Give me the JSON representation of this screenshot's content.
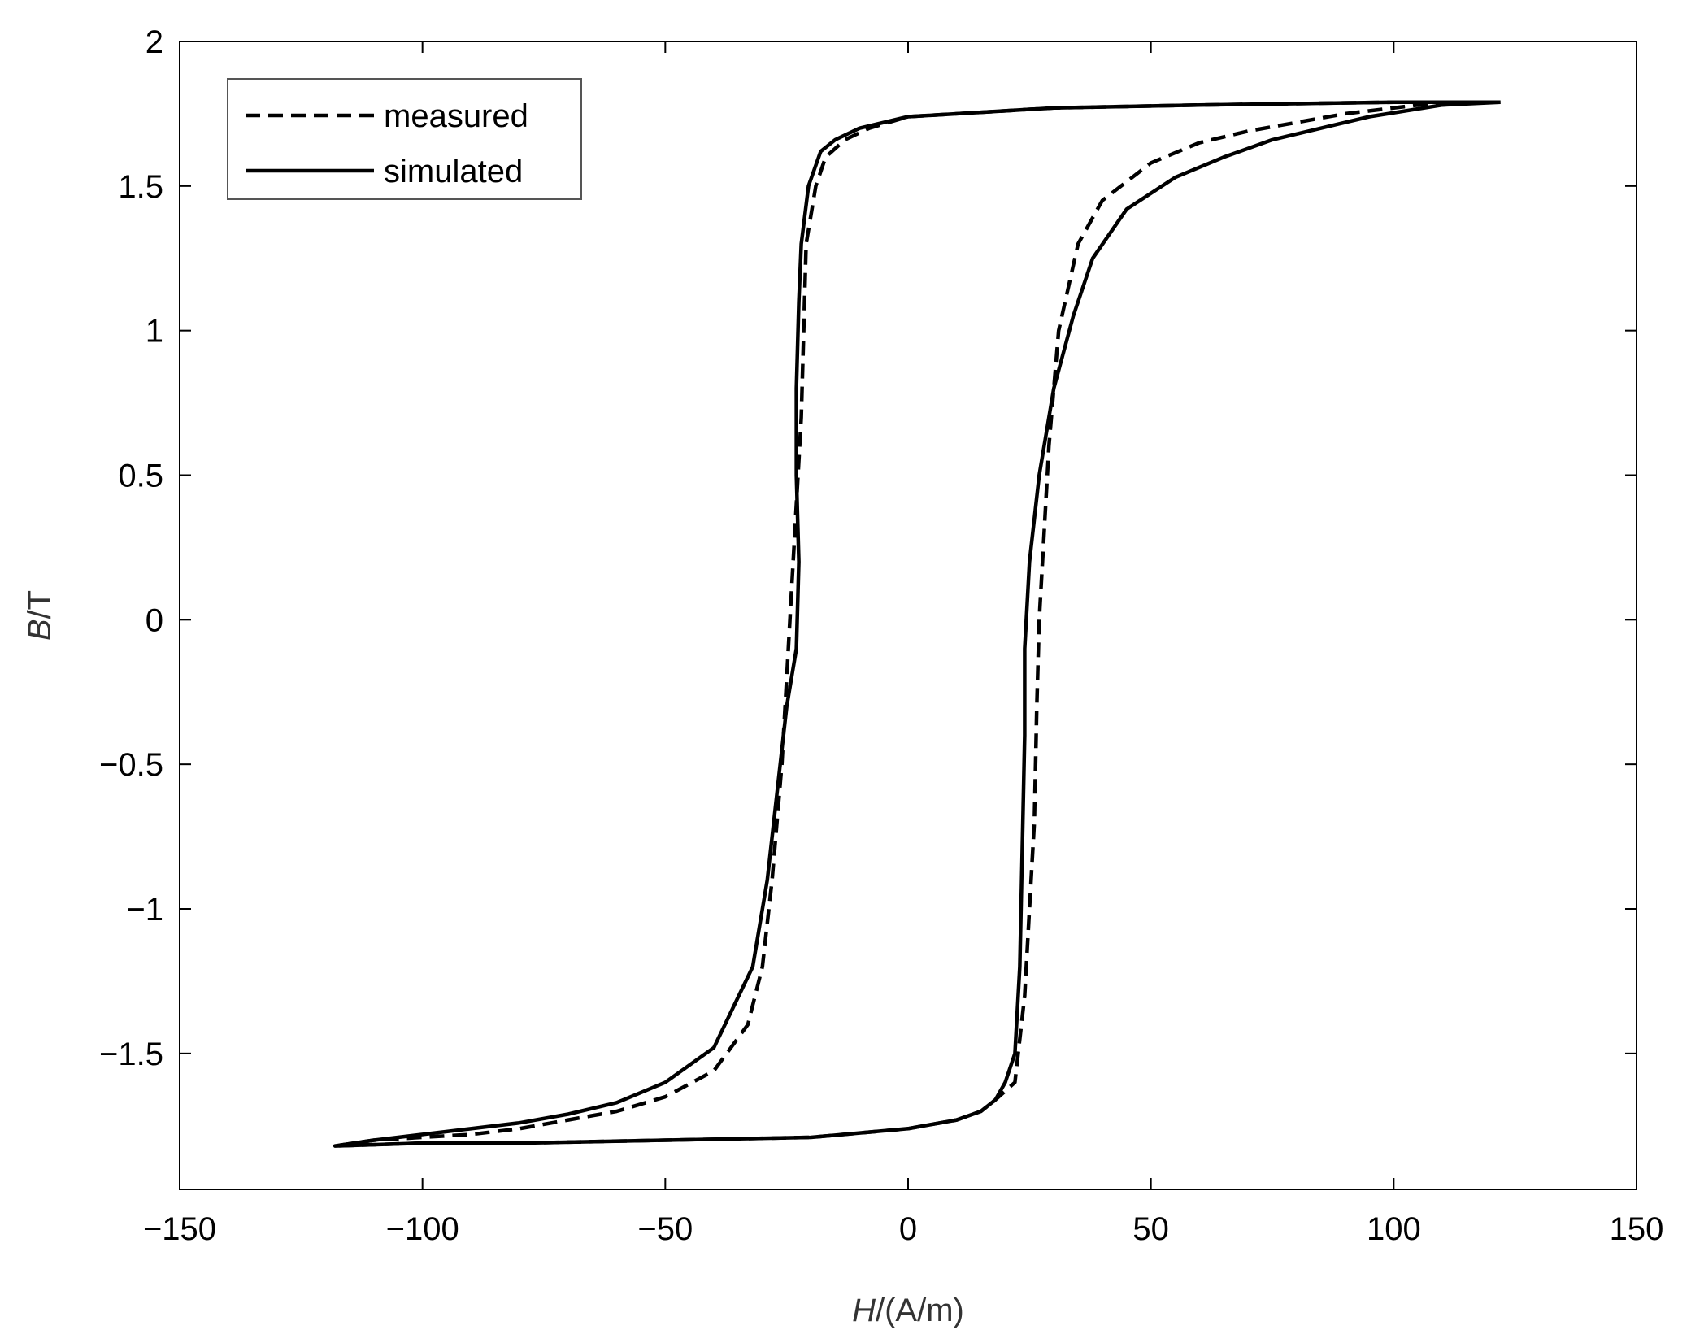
{
  "chart_data": {
    "type": "line",
    "xlabel": {
      "italic": "H",
      "rest": "/(A/m)"
    },
    "ylabel": {
      "italic": "B",
      "rest": "/T"
    },
    "xlim": [
      -150,
      150
    ],
    "ylim": [
      -1.97,
      2.0
    ],
    "xticks": [
      {
        "value": -150,
        "label": "−150"
      },
      {
        "value": -100,
        "label": "−100"
      },
      {
        "value": -50,
        "label": "−50"
      },
      {
        "value": 0,
        "label": "0"
      },
      {
        "value": 50,
        "label": "50"
      },
      {
        "value": 100,
        "label": "100"
      },
      {
        "value": 150,
        "label": "150"
      }
    ],
    "yticks": [
      {
        "value": -1.5,
        "label": "−1.5"
      },
      {
        "value": -1,
        "label": "−1"
      },
      {
        "value": -0.5,
        "label": "−0.5"
      },
      {
        "value": 0,
        "label": "0"
      },
      {
        "value": 0.5,
        "label": "0.5"
      },
      {
        "value": 1,
        "label": "1"
      },
      {
        "value": 1.5,
        "label": "1.5"
      },
      {
        "value": 2,
        "label": "2"
      }
    ],
    "grid": false,
    "legend_position": "top-left",
    "series": [
      {
        "name": "measured",
        "style": "dashed",
        "color": "#000000",
        "points": [
          [
            121,
            1.79
          ],
          [
            110,
            1.79
          ],
          [
            90,
            1.75
          ],
          [
            80,
            1.72
          ],
          [
            70,
            1.69
          ],
          [
            60,
            1.65
          ],
          [
            50,
            1.58
          ],
          [
            40,
            1.45
          ],
          [
            35,
            1.3
          ],
          [
            31,
            1.0
          ],
          [
            29,
            0.6
          ],
          [
            28,
            0.3
          ],
          [
            27,
            0.0
          ],
          [
            26.5,
            -0.3
          ],
          [
            26,
            -0.7
          ],
          [
            25,
            -1.0
          ],
          [
            24,
            -1.3
          ],
          [
            22,
            -1.6
          ],
          [
            18,
            -1.66
          ],
          [
            15,
            -1.7
          ],
          [
            10,
            -1.73
          ],
          [
            0,
            -1.76
          ],
          [
            -20,
            -1.79
          ],
          [
            -50,
            -1.8
          ],
          [
            -80,
            -1.81
          ],
          [
            -100,
            -1.81
          ],
          [
            -118,
            -1.82
          ],
          [
            -110,
            -1.8
          ],
          [
            -90,
            -1.78
          ],
          [
            -80,
            -1.76
          ],
          [
            -70,
            -1.73
          ],
          [
            -60,
            -1.7
          ],
          [
            -50,
            -1.65
          ],
          [
            -40,
            -1.56
          ],
          [
            -33,
            -1.4
          ],
          [
            -30,
            -1.2
          ],
          [
            -28,
            -0.9
          ],
          [
            -26,
            -0.5
          ],
          [
            -25,
            -0.2
          ],
          [
            -24,
            0.1
          ],
          [
            -23,
            0.4
          ],
          [
            -22,
            0.7
          ],
          [
            -21.5,
            1.0
          ],
          [
            -21,
            1.3
          ],
          [
            -19,
            1.5
          ],
          [
            -17,
            1.6
          ],
          [
            -13,
            1.66
          ],
          [
            -8,
            1.7
          ],
          [
            0,
            1.74
          ],
          [
            30,
            1.77
          ],
          [
            60,
            1.78
          ],
          [
            100,
            1.79
          ],
          [
            121,
            1.79
          ]
        ]
      },
      {
        "name": "simulated",
        "style": "solid",
        "color": "#000000",
        "points": [
          [
            122,
            1.79
          ],
          [
            110,
            1.78
          ],
          [
            95,
            1.74
          ],
          [
            85,
            1.7
          ],
          [
            75,
            1.66
          ],
          [
            65,
            1.6
          ],
          [
            55,
            1.53
          ],
          [
            45,
            1.42
          ],
          [
            38,
            1.25
          ],
          [
            34,
            1.05
          ],
          [
            30,
            0.8
          ],
          [
            27,
            0.5
          ],
          [
            25,
            0.2
          ],
          [
            24,
            -0.1
          ],
          [
            24,
            -0.4
          ],
          [
            23.5,
            -0.8
          ],
          [
            23,
            -1.2
          ],
          [
            22,
            -1.5
          ],
          [
            20,
            -1.6
          ],
          [
            18,
            -1.66
          ],
          [
            15,
            -1.7
          ],
          [
            10,
            -1.73
          ],
          [
            0,
            -1.76
          ],
          [
            -20,
            -1.79
          ],
          [
            -50,
            -1.8
          ],
          [
            -80,
            -1.81
          ],
          [
            -100,
            -1.81
          ],
          [
            -118,
            -1.82
          ],
          [
            -110,
            -1.8
          ],
          [
            -95,
            -1.77
          ],
          [
            -80,
            -1.74
          ],
          [
            -70,
            -1.71
          ],
          [
            -60,
            -1.67
          ],
          [
            -50,
            -1.6
          ],
          [
            -40,
            -1.48
          ],
          [
            -32,
            -1.2
          ],
          [
            -29,
            -0.9
          ],
          [
            -27,
            -0.6
          ],
          [
            -25,
            -0.3
          ],
          [
            -23,
            -0.1
          ],
          [
            -22.5,
            0.2
          ],
          [
            -23,
            0.5
          ],
          [
            -23,
            0.8
          ],
          [
            -22.5,
            1.1
          ],
          [
            -22,
            1.3
          ],
          [
            -20.5,
            1.5
          ],
          [
            -18,
            1.62
          ],
          [
            -15,
            1.66
          ],
          [
            -10,
            1.7
          ],
          [
            0,
            1.74
          ],
          [
            30,
            1.77
          ],
          [
            60,
            1.78
          ],
          [
            100,
            1.79
          ],
          [
            122,
            1.79
          ]
        ]
      }
    ]
  }
}
